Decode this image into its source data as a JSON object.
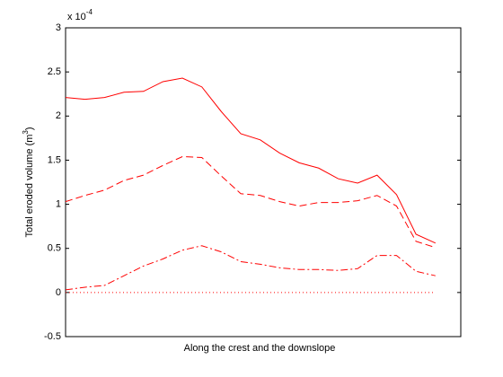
{
  "chart_data": {
    "type": "line",
    "xlabel": "Along the crest and the downslope",
    "ylabel": {
      "text": "Total eroded volume (m",
      "superscript": "3",
      "close": ")"
    },
    "y_multiplier": {
      "base": "x 10",
      "exponent": "-4"
    },
    "x": [
      1,
      2,
      3,
      4,
      5,
      6,
      7,
      8,
      9,
      10,
      11,
      12,
      13,
      14,
      15,
      16,
      17,
      18,
      19,
      20
    ],
    "xlim": [
      1,
      21.3
    ],
    "ylim": [
      -0.5,
      3
    ],
    "yticks": [
      -0.5,
      0,
      0.5,
      1,
      1.5,
      2,
      2.5,
      3
    ],
    "grid": false,
    "series": [
      {
        "color": "#ff0000",
        "line_style": "solid",
        "values": [
          2.21,
          2.19,
          2.21,
          2.27,
          2.28,
          2.39,
          2.43,
          2.33,
          2.05,
          1.8,
          1.73,
          1.58,
          1.47,
          1.41,
          1.29,
          1.24,
          1.33,
          1.11,
          0.66,
          0.56
        ]
      },
      {
        "color": "#ff0000",
        "line_style": "dashed",
        "values": [
          1.03,
          1.1,
          1.16,
          1.27,
          1.33,
          1.44,
          1.54,
          1.53,
          1.32,
          1.12,
          1.1,
          1.03,
          0.98,
          1.02,
          1.02,
          1.04,
          1.1,
          0.98,
          0.58,
          0.51
        ]
      },
      {
        "color": "#ff0000",
        "line_style": "dashdot",
        "values": [
          0.03,
          0.06,
          0.08,
          0.19,
          0.3,
          0.38,
          0.48,
          0.53,
          0.46,
          0.35,
          0.32,
          0.28,
          0.26,
          0.26,
          0.25,
          0.27,
          0.42,
          0.42,
          0.24,
          0.19
        ]
      },
      {
        "color": "#ff0000",
        "line_style": "dotted",
        "values": [
          0,
          0,
          0,
          0,
          0,
          0,
          0,
          0,
          0,
          0,
          0,
          0,
          0,
          0,
          0,
          0,
          0,
          0,
          0,
          0
        ]
      }
    ]
  }
}
